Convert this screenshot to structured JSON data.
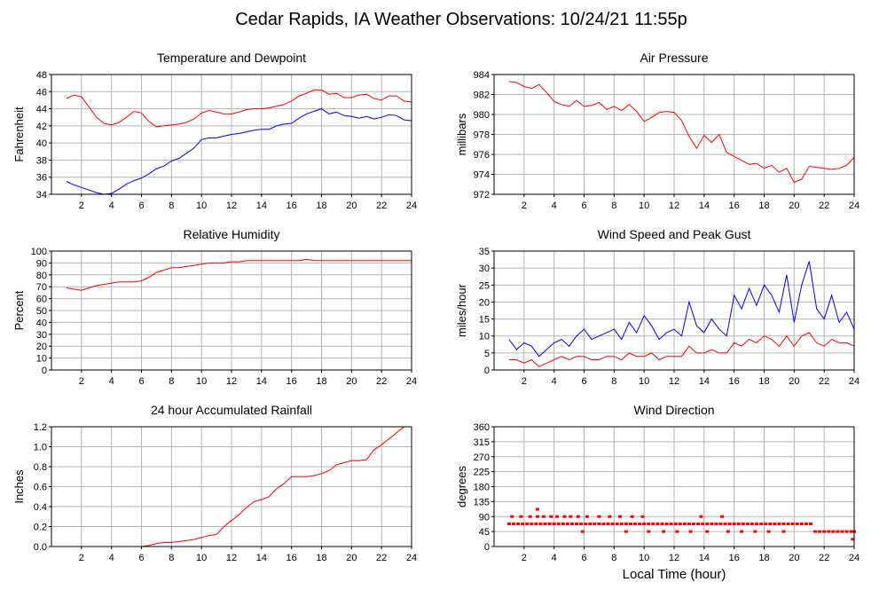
{
  "page": {
    "title": "Cedar Rapids, IA Weather Observations: 10/24/21 11:55p",
    "xlabel": "Local Time (hour)"
  },
  "chart_data": [
    {
      "type": "line",
      "title": "Temperature and Dewpoint",
      "ylabel": "Fahrenheit",
      "xlim": [
        0,
        24
      ],
      "ylim": [
        34,
        48
      ],
      "yticks": [
        34,
        36,
        38,
        40,
        42,
        44,
        46,
        48
      ],
      "xticks": [
        2,
        4,
        6,
        8,
        10,
        12,
        14,
        16,
        18,
        20,
        22,
        24
      ],
      "grid": true,
      "series": [
        {
          "color": "#ff0000",
          "x": [
            1,
            1.5,
            2,
            2.5,
            3,
            3.5,
            4,
            4.5,
            5,
            5.5,
            6,
            6.5,
            7,
            7.5,
            8,
            8.5,
            9,
            9.5,
            10,
            10.5,
            11,
            11.5,
            12,
            12.5,
            13,
            13.5,
            14,
            14.5,
            15,
            15.5,
            16,
            16.5,
            17,
            17.5,
            18,
            18.5,
            19,
            19.5,
            20,
            20.5,
            21,
            21.5,
            22,
            22.5,
            23,
            23.5,
            24
          ],
          "y": [
            45.2,
            45.6,
            45.4,
            44.2,
            43.0,
            42.3,
            42.1,
            42.4,
            43.0,
            43.7,
            43.5,
            42.5,
            41.9,
            42.0,
            42.1,
            42.2,
            42.4,
            42.8,
            43.5,
            43.8,
            43.6,
            43.4,
            43.4,
            43.6,
            43.9,
            44.0,
            44.0,
            44.1,
            44.3,
            44.5,
            44.9,
            45.5,
            45.8,
            46.2,
            46.2,
            45.7,
            45.8,
            45.3,
            45.3,
            45.6,
            45.7,
            45.2,
            45.0,
            45.5,
            45.5,
            44.9,
            44.8
          ]
        },
        {
          "color": "#0000ff",
          "x": [
            1,
            1.5,
            2,
            2.5,
            3,
            3.5,
            4,
            4.5,
            5,
            5.5,
            6,
            6.5,
            7,
            7.5,
            8,
            8.5,
            9,
            9.5,
            10,
            10.5,
            11,
            11.5,
            12,
            12.5,
            13,
            13.5,
            14,
            14.5,
            15,
            15.5,
            16,
            16.5,
            17,
            17.5,
            18,
            18.5,
            19,
            19.5,
            20,
            20.5,
            21,
            21.5,
            22,
            22.5,
            23,
            23.5,
            24
          ],
          "y": [
            35.5,
            35.1,
            34.8,
            34.5,
            34.2,
            34.0,
            34.1,
            34.6,
            35.2,
            35.6,
            35.9,
            36.4,
            37.0,
            37.3,
            37.9,
            38.2,
            38.8,
            39.4,
            40.4,
            40.6,
            40.6,
            40.8,
            41.0,
            41.1,
            41.3,
            41.5,
            41.6,
            41.6,
            42.0,
            42.2,
            42.3,
            42.9,
            43.4,
            43.7,
            44.0,
            43.4,
            43.6,
            43.2,
            43.1,
            42.9,
            43.1,
            42.8,
            43.0,
            43.3,
            43.2,
            42.7,
            42.6
          ]
        }
      ]
    },
    {
      "type": "line",
      "title": "Air Pressure",
      "ylabel": "millibars",
      "xlim": [
        0,
        24
      ],
      "ylim": [
        972,
        984
      ],
      "yticks": [
        972,
        974,
        976,
        978,
        980,
        982,
        984
      ],
      "xticks": [
        2,
        4,
        6,
        8,
        10,
        12,
        14,
        16,
        18,
        20,
        22,
        24
      ],
      "grid": true,
      "series": [
        {
          "color": "#ff0000",
          "x": [
            1,
            1.5,
            2,
            2.5,
            3,
            3.5,
            4,
            4.5,
            5,
            5.5,
            6,
            6.5,
            7,
            7.5,
            8,
            8.5,
            9,
            9.5,
            10,
            10.5,
            11,
            11.5,
            12,
            12.5,
            13,
            13.5,
            14,
            14.5,
            15,
            15.5,
            16,
            16.5,
            17,
            17.5,
            18,
            18.5,
            19,
            19.5,
            20,
            20.5,
            21,
            21.5,
            22,
            22.5,
            23,
            23.5,
            24
          ],
          "y": [
            983.3,
            983.2,
            982.8,
            982.6,
            983.0,
            982.2,
            981.3,
            981.0,
            980.8,
            981.4,
            980.8,
            980.9,
            981.2,
            980.5,
            980.8,
            980.4,
            981.0,
            980.3,
            979.3,
            979.7,
            980.2,
            980.3,
            980.2,
            979.4,
            977.8,
            976.6,
            977.9,
            977.2,
            978.0,
            976.2,
            975.8,
            975.4,
            975.0,
            975.1,
            974.6,
            974.9,
            974.2,
            974.6,
            973.2,
            973.5,
            974.8,
            974.7,
            974.6,
            974.5,
            974.6,
            974.9,
            975.7
          ]
        }
      ]
    },
    {
      "type": "line",
      "title": "Relative Humidity",
      "ylabel": "Percent",
      "xlim": [
        0,
        24
      ],
      "ylim": [
        0,
        100
      ],
      "yticks": [
        0,
        10,
        20,
        30,
        40,
        50,
        60,
        70,
        80,
        90,
        100
      ],
      "xticks": [
        2,
        4,
        6,
        8,
        10,
        12,
        14,
        16,
        18,
        20,
        22,
        24
      ],
      "grid": true,
      "series": [
        {
          "color": "#ff0000",
          "x": [
            1,
            1.5,
            2,
            2.5,
            3,
            3.5,
            4,
            4.5,
            5,
            5.5,
            6,
            6.5,
            7,
            7.5,
            8,
            8.5,
            9,
            9.5,
            10,
            10.5,
            11,
            11.5,
            12,
            12.5,
            13,
            13.5,
            14,
            14.5,
            15,
            15.5,
            16,
            16.5,
            17,
            17.5,
            18,
            18.5,
            19,
            19.5,
            20,
            20.5,
            21,
            21.5,
            22,
            22.5,
            23,
            23.5,
            24
          ],
          "y": [
            69,
            68,
            67,
            69,
            71,
            72,
            73,
            74,
            74,
            74,
            75,
            78,
            82,
            84,
            86,
            86,
            87,
            88,
            89,
            90,
            90,
            90,
            91,
            91,
            92,
            92,
            92,
            92,
            92,
            92,
            92,
            92,
            93,
            92,
            92,
            92,
            92,
            92,
            92,
            92,
            92,
            92,
            92,
            92,
            92,
            92,
            92
          ]
        }
      ]
    },
    {
      "type": "line",
      "title": "Wind Speed and Peak Gust",
      "ylabel": "miles/hour",
      "xlim": [
        0,
        24
      ],
      "ylim": [
        0,
        35
      ],
      "yticks": [
        0,
        5,
        10,
        15,
        20,
        25,
        30,
        35
      ],
      "xticks": [
        2,
        4,
        6,
        8,
        10,
        12,
        14,
        16,
        18,
        20,
        22,
        24
      ],
      "grid": true,
      "series": [
        {
          "color": "#0000ff",
          "x": [
            1,
            1.5,
            2,
            2.5,
            3,
            3.5,
            4,
            4.5,
            5,
            5.5,
            6,
            6.5,
            7,
            7.5,
            8,
            8.5,
            9,
            9.5,
            10,
            10.5,
            11,
            11.5,
            12,
            12.5,
            13,
            13.5,
            14,
            14.5,
            15,
            15.5,
            16,
            16.5,
            17,
            17.5,
            18,
            18.5,
            19,
            19.5,
            20,
            20.5,
            21,
            21.5,
            22,
            22.5,
            23,
            23.5,
            24
          ],
          "y": [
            9,
            6,
            8,
            7,
            4,
            6,
            8,
            9,
            7,
            10,
            12,
            9,
            10,
            11,
            12,
            9,
            14,
            11,
            16,
            13,
            9,
            11,
            12,
            10,
            20,
            13,
            11,
            15,
            12,
            10,
            22,
            18,
            24,
            19,
            25,
            22,
            17,
            28,
            14,
            25,
            32,
            18,
            15,
            22,
            14,
            17,
            12
          ]
        },
        {
          "color": "#ff0000",
          "x": [
            1,
            1.5,
            2,
            2.5,
            3,
            3.5,
            4,
            4.5,
            5,
            5.5,
            6,
            6.5,
            7,
            7.5,
            8,
            8.5,
            9,
            9.5,
            10,
            10.5,
            11,
            11.5,
            12,
            12.5,
            13,
            13.5,
            14,
            14.5,
            15,
            15.5,
            16,
            16.5,
            17,
            17.5,
            18,
            18.5,
            19,
            19.5,
            20,
            20.5,
            21,
            21.5,
            22,
            22.5,
            23,
            23.5,
            24
          ],
          "y": [
            3,
            3,
            2,
            3,
            1,
            2,
            3,
            4,
            3,
            4,
            4,
            3,
            3,
            4,
            4,
            3,
            5,
            4,
            4,
            5,
            3,
            4,
            4,
            4,
            7,
            5,
            5,
            6,
            5,
            5,
            8,
            7,
            9,
            8,
            10,
            9,
            7,
            10,
            7,
            10,
            11,
            8,
            7,
            9,
            8,
            8,
            7
          ]
        }
      ]
    },
    {
      "type": "line",
      "title": "24 hour Accumulated Rainfall",
      "ylabel": "Inches",
      "xlim": [
        0,
        24
      ],
      "ylim": [
        0,
        1.2
      ],
      "yticks": [
        0.0,
        0.2,
        0.4,
        0.6,
        0.8,
        1.0,
        1.2
      ],
      "xticks": [
        2,
        4,
        6,
        8,
        10,
        12,
        14,
        16,
        18,
        20,
        22,
        24
      ],
      "grid": true,
      "series": [
        {
          "color": "#ff0000",
          "x": [
            1,
            2,
            3,
            4,
            5,
            6,
            6.5,
            7,
            7.5,
            8,
            8.5,
            9,
            9.5,
            10,
            10.5,
            11,
            11.5,
            12,
            12.5,
            13,
            13.5,
            14,
            14.5,
            15,
            15.5,
            16,
            16.5,
            17,
            17.5,
            18,
            18.5,
            19,
            19.5,
            20,
            20.5,
            21,
            21.5,
            22,
            22.5,
            23,
            23.5
          ],
          "y": [
            0,
            0,
            0,
            0,
            0,
            0,
            0.01,
            0.03,
            0.04,
            0.04,
            0.05,
            0.06,
            0.07,
            0.09,
            0.11,
            0.12,
            0.2,
            0.26,
            0.32,
            0.39,
            0.45,
            0.47,
            0.5,
            0.58,
            0.63,
            0.7,
            0.7,
            0.7,
            0.71,
            0.73,
            0.76,
            0.82,
            0.84,
            0.86,
            0.86,
            0.87,
            0.97,
            1.02,
            1.08,
            1.14,
            1.2
          ]
        }
      ]
    },
    {
      "type": "scatter",
      "title": "Wind Direction",
      "ylabel": "degrees",
      "xlabel": "Local Time (hour)",
      "xlim": [
        0,
        24
      ],
      "ylim": [
        0,
        360
      ],
      "yticks": [
        0,
        45,
        90,
        135,
        180,
        225,
        270,
        315,
        360
      ],
      "xticks": [
        2,
        4,
        6,
        8,
        10,
        12,
        14,
        16,
        18,
        20,
        22,
        24
      ],
      "grid": true,
      "series": [
        {
          "color": "#ff0000",
          "x": [
            1.0,
            1.3,
            1.6,
            1.9,
            2.2,
            2.5,
            2.8,
            3.1,
            3.4,
            3.7,
            4.0,
            4.3,
            4.6,
            4.9,
            5.2,
            5.5,
            5.8,
            6.1,
            6.4,
            6.7,
            7.0,
            7.3,
            7.6,
            7.9,
            8.2,
            8.5,
            8.8,
            9.1,
            9.4,
            9.7,
            10.0,
            10.3,
            10.6,
            10.9,
            11.2,
            11.5,
            11.8,
            12.1,
            12.4,
            12.7,
            13.0,
            13.3,
            13.6,
            13.9,
            14.2,
            14.5,
            14.8,
            15.1,
            15.4,
            15.7,
            16.0,
            16.3,
            16.6,
            16.9,
            17.2,
            17.5,
            17.8,
            18.1,
            18.4,
            18.7,
            19.0,
            19.3,
            19.6,
            19.9,
            20.2,
            20.5,
            20.8,
            21.1,
            1.2,
            1.8,
            2.4,
            2.9,
            3.3,
            3.8,
            4.2,
            4.7,
            5.1,
            5.6,
            6.2,
            7.0,
            7.7,
            8.4,
            9.2,
            9.9,
            13.8,
            15.2,
            2.9,
            5.9,
            8.8,
            10.3,
            11.3,
            12.2,
            13.1,
            14.2,
            15.6,
            16.5,
            17.4,
            18.3,
            19.3,
            21.4,
            21.7,
            22.0,
            22.3,
            22.6,
            22.9,
            23.2,
            23.5,
            23.8,
            24.0,
            23.9
          ],
          "y": [
            68,
            68,
            68,
            68,
            68,
            68,
            68,
            68,
            68,
            68,
            68,
            68,
            68,
            68,
            68,
            68,
            68,
            68,
            68,
            68,
            68,
            68,
            68,
            68,
            68,
            68,
            68,
            68,
            68,
            68,
            68,
            68,
            68,
            68,
            68,
            68,
            68,
            68,
            68,
            68,
            68,
            68,
            68,
            68,
            68,
            68,
            68,
            68,
            68,
            68,
            68,
            68,
            68,
            68,
            68,
            68,
            68,
            68,
            68,
            68,
            68,
            68,
            68,
            68,
            68,
            68,
            68,
            68,
            90,
            90,
            90,
            90,
            90,
            90,
            90,
            90,
            90,
            90,
            90,
            90,
            90,
            90,
            90,
            90,
            90,
            90,
            112,
            45,
            45,
            45,
            45,
            45,
            45,
            45,
            45,
            45,
            45,
            45,
            45,
            45,
            45,
            45,
            45,
            45,
            45,
            45,
            45,
            45,
            45,
            22
          ]
        }
      ]
    }
  ]
}
